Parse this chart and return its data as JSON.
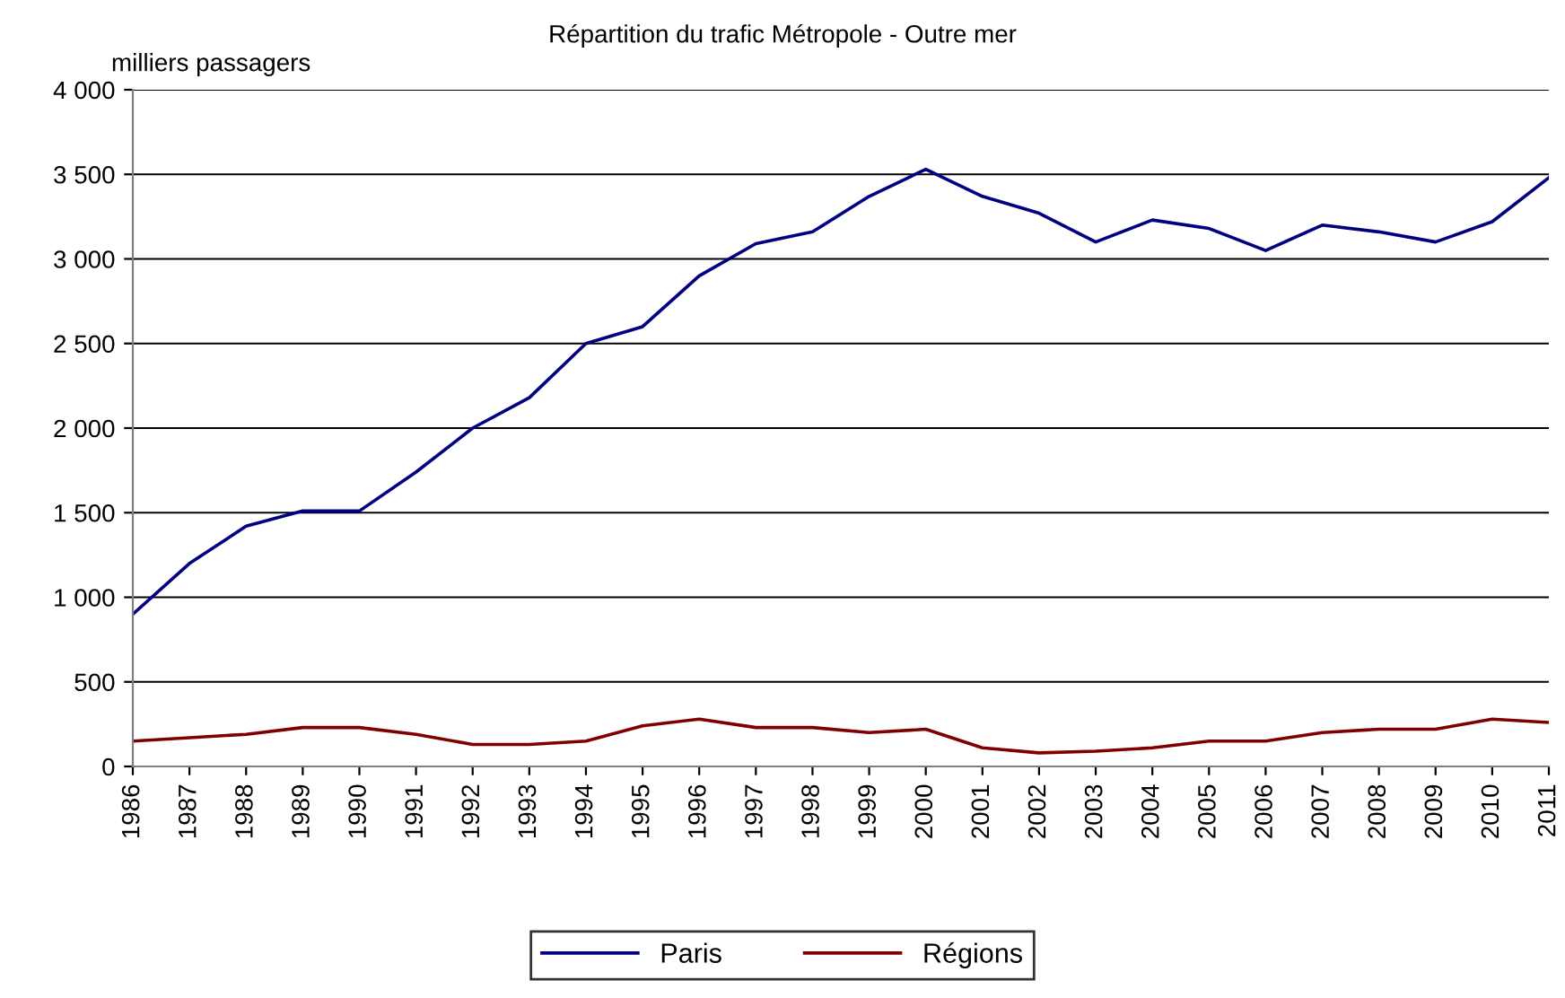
{
  "chart_data": {
    "type": "line",
    "title": "Répartition du trafic Métropole - Outre mer",
    "ylabel": "milliers passagers",
    "categories": [
      "1986",
      "1987",
      "1988",
      "1989",
      "1990",
      "1991",
      "1992",
      "1993",
      "1994",
      "1995",
      "1996",
      "1997",
      "1998",
      "1999",
      "2000",
      "2001",
      "2002",
      "2003",
      "2004",
      "2005",
      "2006",
      "2007",
      "2008",
      "2009",
      "2010",
      "2011"
    ],
    "series": [
      {
        "name": "Paris",
        "color": "#000080",
        "values": [
          900,
          1200,
          1420,
          1510,
          1510,
          1740,
          2000,
          2180,
          2500,
          2600,
          2900,
          3090,
          3160,
          3370,
          3530,
          3370,
          3270,
          3100,
          3230,
          3180,
          3050,
          3200,
          3160,
          3100,
          3220,
          3480
        ]
      },
      {
        "name": "Régions",
        "color": "#800000",
        "values": [
          150,
          170,
          190,
          230,
          230,
          190,
          130,
          130,
          150,
          240,
          280,
          230,
          230,
          200,
          220,
          110,
          80,
          90,
          110,
          150,
          150,
          200,
          220,
          220,
          280,
          260
        ]
      }
    ],
    "ylim": [
      0,
      4000
    ],
    "yticks": [
      0,
      500,
      {
        "value": 1000,
        "label": "1 000"
      },
      {
        "value": 1500,
        "label": "1 500"
      },
      {
        "value": 2000,
        "label": "2 000"
      },
      {
        "value": 2500,
        "label": "2 500"
      },
      {
        "value": 3000,
        "label": "3 000"
      },
      {
        "value": 3500,
        "label": "3 500"
      },
      {
        "value": 4000,
        "label": "4 000"
      }
    ],
    "grid": "y",
    "legend": "bottom",
    "marker": "none",
    "line_style": "solid"
  }
}
